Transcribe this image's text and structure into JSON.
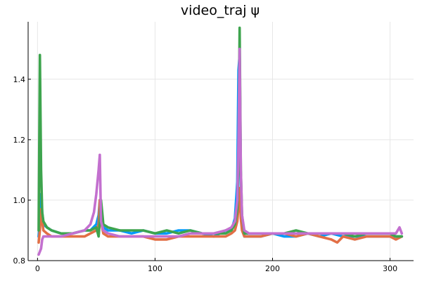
{
  "chart_data": {
    "type": "line",
    "title": "video_traj ψ",
    "xlabel": "",
    "ylabel": "",
    "xlim": [
      -8,
      320
    ],
    "ylim": [
      0.8,
      1.59
    ],
    "xticks": [
      {
        "value": 0,
        "label": "0"
      },
      {
        "value": 100,
        "label": "100"
      },
      {
        "value": 200,
        "label": "200"
      },
      {
        "value": 300,
        "label": "300"
      }
    ],
    "yticks": [
      {
        "value": 0.8,
        "label": "0.8"
      },
      {
        "value": 1.0,
        "label": "1.0"
      },
      {
        "value": 1.2,
        "label": "1.2"
      },
      {
        "value": 1.4,
        "label": "1.4"
      }
    ],
    "grid": true,
    "legend": "none",
    "series": [
      {
        "color": "#009AFA",
        "x": [
          1,
          2,
          3,
          4,
          5,
          8,
          12,
          20,
          30,
          40,
          45,
          50,
          52,
          53,
          54,
          56,
          60,
          70,
          80,
          90,
          100,
          110,
          120,
          130,
          140,
          150,
          160,
          165,
          168,
          170,
          171,
          172,
          173,
          174,
          176,
          180,
          190,
          200,
          210,
          220,
          230,
          240,
          250,
          260,
          270,
          280,
          290,
          300,
          305,
          310
        ],
        "y": [
          0.88,
          0.93,
          1.02,
          0.96,
          0.92,
          0.91,
          0.9,
          0.89,
          0.89,
          0.9,
          0.9,
          0.92,
          0.95,
          1.0,
          0.95,
          0.91,
          0.9,
          0.9,
          0.89,
          0.9,
          0.89,
          0.89,
          0.9,
          0.9,
          0.89,
          0.88,
          0.9,
          0.9,
          0.94,
          1.06,
          1.43,
          1.48,
          1.05,
          0.94,
          0.88,
          0.88,
          0.88,
          0.89,
          0.88,
          0.88,
          0.89,
          0.88,
          0.89,
          0.88,
          0.88,
          0.88,
          0.88,
          0.88,
          0.88,
          0.88
        ]
      },
      {
        "color": "#E26F46",
        "x": [
          1,
          2,
          3,
          4,
          5,
          8,
          12,
          20,
          30,
          40,
          45,
          50,
          52,
          53,
          54,
          56,
          60,
          70,
          80,
          90,
          100,
          110,
          120,
          130,
          140,
          150,
          160,
          165,
          168,
          170,
          171,
          172,
          173,
          174,
          176,
          180,
          190,
          200,
          210,
          220,
          230,
          240,
          250,
          255,
          260,
          270,
          280,
          290,
          300,
          305,
          310
        ],
        "y": [
          0.86,
          0.9,
          0.97,
          0.93,
          0.9,
          0.89,
          0.88,
          0.88,
          0.88,
          0.88,
          0.89,
          0.9,
          0.92,
          1.0,
          0.93,
          0.89,
          0.88,
          0.88,
          0.88,
          0.88,
          0.87,
          0.87,
          0.88,
          0.88,
          0.88,
          0.88,
          0.88,
          0.89,
          0.9,
          0.93,
          0.98,
          1.04,
          0.94,
          0.9,
          0.88,
          0.88,
          0.88,
          0.89,
          0.89,
          0.88,
          0.89,
          0.88,
          0.87,
          0.86,
          0.88,
          0.87,
          0.88,
          0.88,
          0.88,
          0.87,
          0.88
        ]
      },
      {
        "color": "#3EA44E",
        "x": [
          1,
          2,
          3,
          4,
          5,
          8,
          12,
          20,
          30,
          40,
          45,
          50,
          52,
          53,
          54,
          55,
          56,
          60,
          70,
          80,
          90,
          100,
          110,
          120,
          130,
          140,
          150,
          160,
          165,
          168,
          170,
          171,
          172,
          173,
          174,
          176,
          180,
          190,
          200,
          210,
          220,
          230,
          240,
          250,
          260,
          270,
          280,
          290,
          300,
          305,
          310
        ],
        "y": [
          0.9,
          1.48,
          1.1,
          0.96,
          0.93,
          0.91,
          0.9,
          0.89,
          0.89,
          0.9,
          0.9,
          0.91,
          0.88,
          0.93,
          1.0,
          0.96,
          0.92,
          0.91,
          0.9,
          0.9,
          0.9,
          0.89,
          0.9,
          0.89,
          0.9,
          0.89,
          0.89,
          0.89,
          0.9,
          0.92,
          0.97,
          1.12,
          1.57,
          1.1,
          0.95,
          0.89,
          0.89,
          0.89,
          0.89,
          0.89,
          0.9,
          0.89,
          0.89,
          0.89,
          0.89,
          0.88,
          0.89,
          0.89,
          0.89,
          0.88,
          0.88
        ]
      },
      {
        "color": "#C370CF",
        "x": [
          1,
          2,
          3,
          4,
          5,
          8,
          12,
          20,
          30,
          40,
          45,
          48,
          50,
          52,
          53,
          54,
          56,
          60,
          70,
          80,
          90,
          100,
          110,
          120,
          130,
          140,
          150,
          160,
          165,
          168,
          170,
          171,
          172,
          173,
          174,
          176,
          180,
          190,
          200,
          210,
          220,
          230,
          240,
          250,
          260,
          270,
          280,
          290,
          300,
          305,
          308,
          310
        ],
        "y": [
          0.82,
          0.83,
          0.84,
          0.87,
          0.88,
          0.88,
          0.88,
          0.88,
          0.89,
          0.9,
          0.92,
          0.96,
          1.02,
          1.1,
          1.15,
          0.93,
          0.9,
          0.89,
          0.88,
          0.88,
          0.88,
          0.88,
          0.88,
          0.88,
          0.89,
          0.89,
          0.89,
          0.9,
          0.91,
          0.93,
          1.0,
          1.2,
          1.5,
          1.1,
          0.95,
          0.9,
          0.89,
          0.89,
          0.89,
          0.89,
          0.89,
          0.89,
          0.89,
          0.89,
          0.89,
          0.89,
          0.89,
          0.89,
          0.89,
          0.89,
          0.91,
          0.89
        ]
      }
    ]
  }
}
